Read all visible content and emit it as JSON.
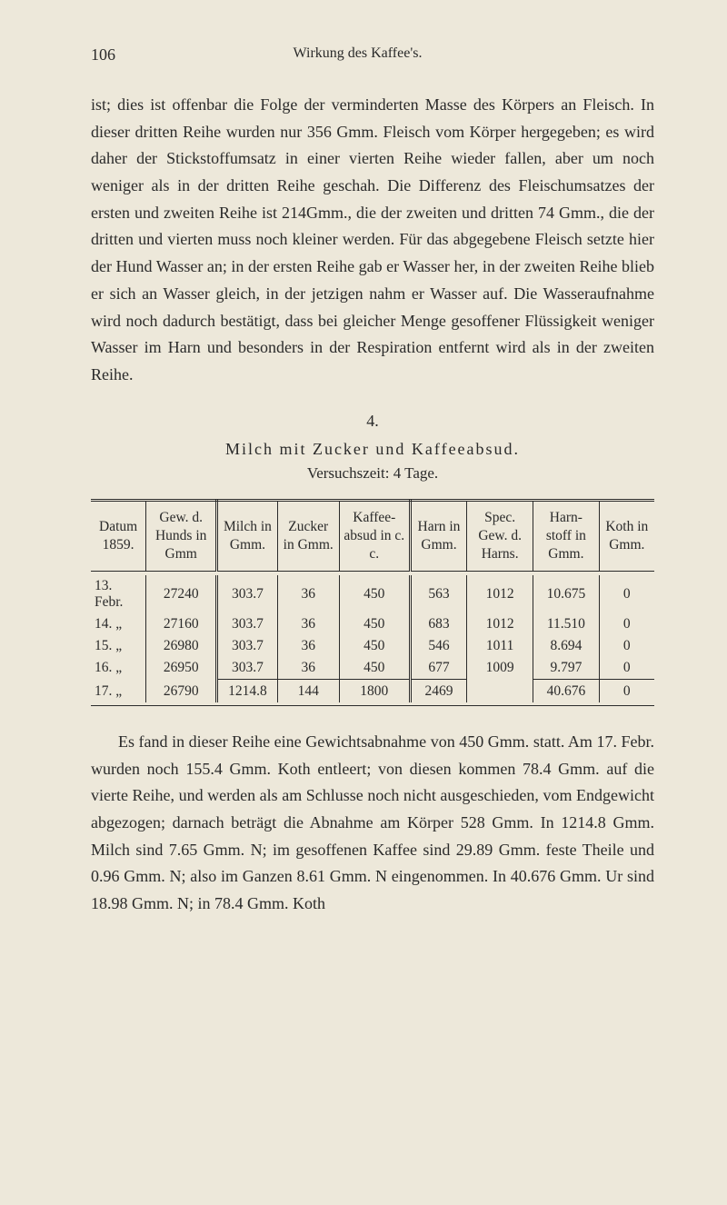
{
  "page": {
    "number": "106",
    "running_head": "Wirkung des Kaffee's."
  },
  "paragraph1": "ist; dies ist offenbar die Folge der verminderten Masse des Körpers an Fleisch. In dieser dritten Reihe wurden nur 356 Gmm. Fleisch vom Körper hergegeben; es wird daher der Stickstoffumsatz in einer vierten Reihe wieder fallen, aber um noch weniger als in der dritten Reihe geschah. Die Differenz des Fleischumsatzes der ersten und zweiten Reihe ist 214Gmm., die der zweiten und dritten 74 Gmm., die der dritten und vierten muss noch kleiner werden. Für das abgegebene Fleisch setzte hier der Hund Wasser an; in der ersten Reihe gab er Wasser her, in der zweiten Reihe blieb er sich an Wasser gleich, in der jetzigen nahm er Wasser auf. Die Wasseraufnahme wird noch dadurch bestätigt, dass bei gleicher Menge gesoffener Flüssigkeit weniger Wasser im Harn und besonders in der Respiration entfernt wird als in der zweiten Reihe.",
  "section": {
    "number": "4.",
    "title": "Milch mit Zucker und Kaffeeabsud.",
    "subtitle": "Versuchszeit: 4 Tage."
  },
  "table": {
    "columns": [
      "Datum 1859.",
      "Gew. d. Hunds in Gmm",
      "Milch in Gmm.",
      "Zucker in Gmm.",
      "Kaffee-absud in c. c.",
      "Harn in Gmm.",
      "Spec. Gew. d. Harns.",
      "Harn-stoff in Gmm.",
      "Koth in Gmm."
    ],
    "rows": [
      [
        "13. Febr.",
        "27240",
        "303.7",
        "36",
        "450",
        "563",
        "1012",
        "10.675",
        "0"
      ],
      [
        "14.   „",
        "27160",
        "303.7",
        "36",
        "450",
        "683",
        "1012",
        "11.510",
        "0"
      ],
      [
        "15.   „",
        "26980",
        "303.7",
        "36",
        "450",
        "546",
        "1011",
        "8.694",
        "0"
      ],
      [
        "16.   „",
        "26950",
        "303.7",
        "36",
        "450",
        "677",
        "1009",
        "9.797",
        "0"
      ],
      [
        "17.   „",
        "26790",
        "1214.8",
        "144",
        "1800",
        "2469",
        "",
        "40.676",
        "0"
      ]
    ]
  },
  "paragraph2": "Es fand in dieser Reihe eine Gewichtsabnahme von 450 Gmm. statt. Am 17. Febr. wurden noch 155.4 Gmm. Koth entleert; von diesen kommen 78.4 Gmm. auf die vierte Reihe, und werden als am Schlusse noch nicht ausgeschieden, vom Endgewicht abgezogen; darnach beträgt die Abnahme am Körper 528 Gmm. In 1214.8 Gmm. Milch sind 7.65 Gmm. N; im gesoffenen Kaffee sind 29.89 Gmm. feste Theile und 0.96 Gmm. N; also im Ganzen 8.61 Gmm. N eingenommen. In 40.676 Gmm. Ur sind 18.98 Gmm. N; in 78.4 Gmm. Koth"
}
